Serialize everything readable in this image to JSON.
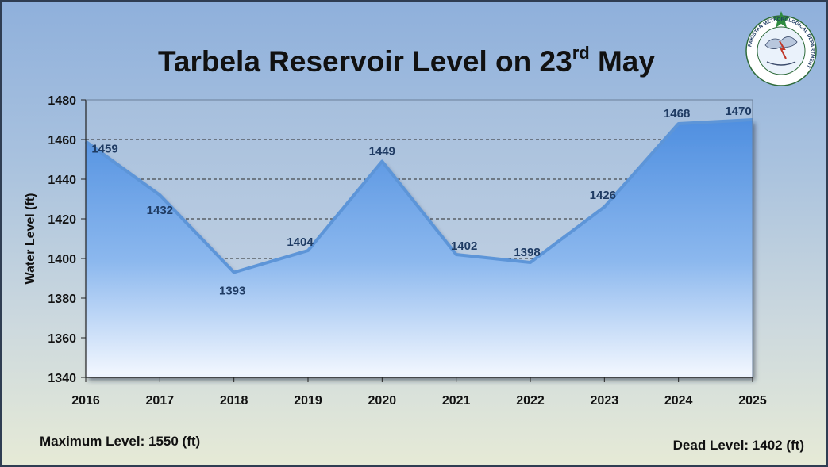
{
  "title": {
    "main": "Tarbela Reservoir Level on 23",
    "sup": "rd",
    "tail": " May"
  },
  "footer": {
    "max_level": "Maximum Level: 1550 (ft)",
    "dead_level": "Dead Level: 1402 (ft)"
  },
  "logo": {
    "ring_text": "PAKISTAN METEOROLOGICAL DEPARTMENT",
    "icon": "pmd-emblem-icon"
  },
  "colors": {
    "area_top": "#4f8fe0",
    "area_bottom": "#ffffff",
    "line": "#5d95d8",
    "label": "#1f3b63"
  },
  "chart_data": {
    "type": "area",
    "title": "Tarbela Reservoir Level on 23rd May",
    "xlabel": "",
    "ylabel": "Water Level (ft)",
    "categories": [
      "2016",
      "2017",
      "2018",
      "2019",
      "2020",
      "2021",
      "2022",
      "2023",
      "2024",
      "2025"
    ],
    "values": [
      1459,
      1432,
      1393,
      1404,
      1449,
      1402,
      1398,
      1426,
      1468,
      1470
    ],
    "data_labels": [
      "1459",
      "1432",
      "1393",
      "1404",
      "1449",
      "1402",
      "1398",
      "1426",
      "1468",
      "1470"
    ],
    "ylim": [
      1340,
      1480
    ],
    "yticks": [
      "1340",
      "1360",
      "1380",
      "1400",
      "1420",
      "1440",
      "1460",
      "1480"
    ],
    "grid": "dashed horizontal"
  }
}
